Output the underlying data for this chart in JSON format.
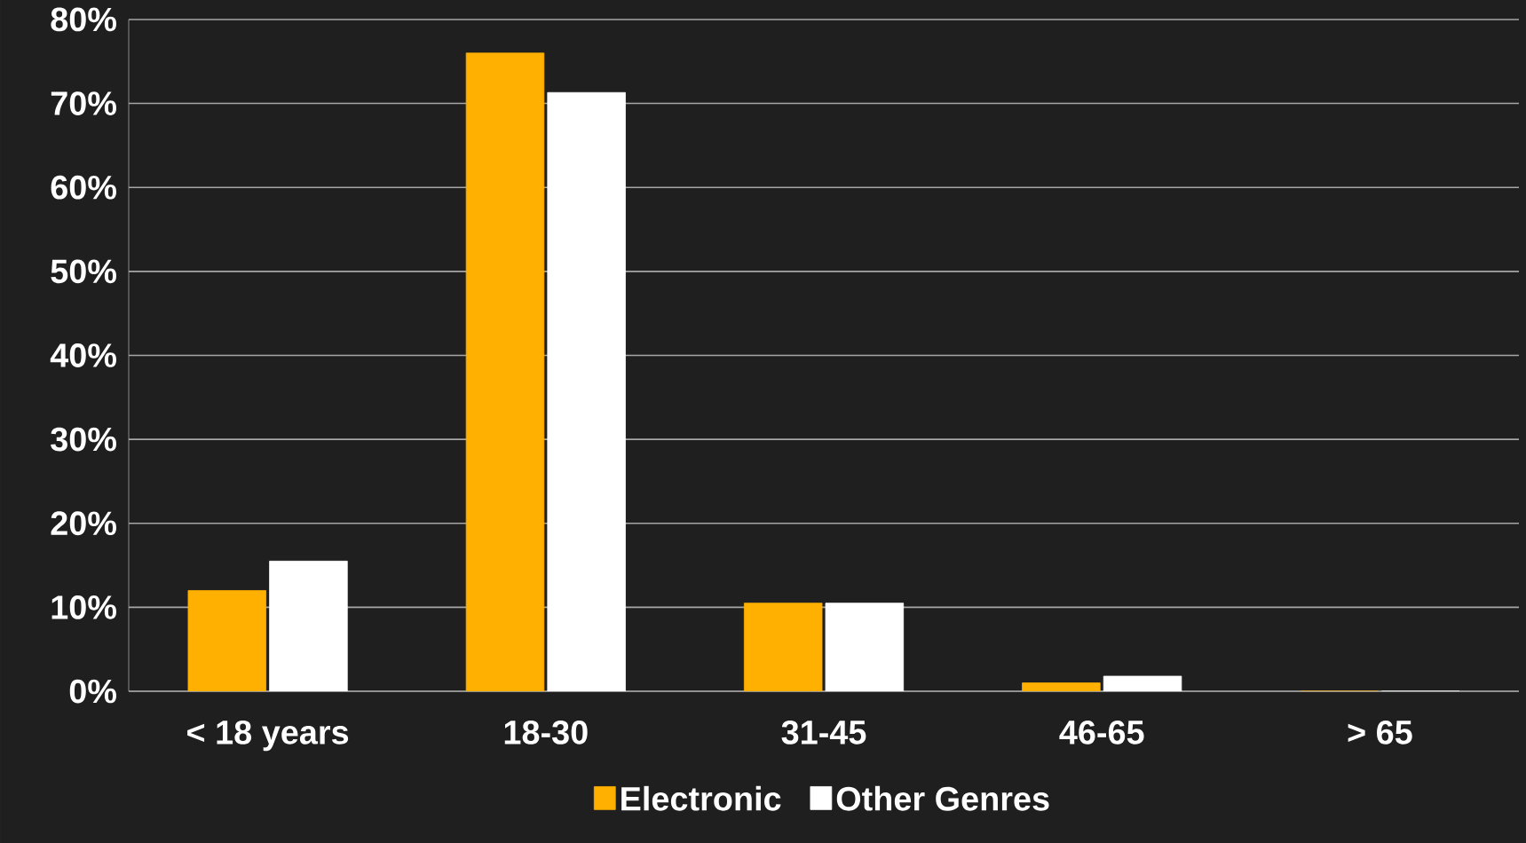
{
  "chart_data": {
    "type": "bar",
    "categories": [
      "< 18 years",
      "18-30",
      "31-45",
      "46-65",
      "> 65"
    ],
    "series": [
      {
        "name": "Electronic",
        "color": "#ffb000",
        "values": [
          12,
          76,
          10.5,
          1,
          0
        ]
      },
      {
        "name": "Other Genres",
        "color": "#ffffff",
        "values": [
          15.5,
          71.3,
          10.5,
          1.8,
          0
        ]
      }
    ],
    "ylim": [
      0,
      80
    ],
    "yticks": [
      {
        "value": 0,
        "label": "0%"
      },
      {
        "value": 10,
        "label": "10%"
      },
      {
        "value": 20,
        "label": "20%"
      },
      {
        "value": 30,
        "label": "30%"
      },
      {
        "value": 40,
        "label": "40%"
      },
      {
        "value": 50,
        "label": "50%"
      },
      {
        "value": 60,
        "label": "60%"
      },
      {
        "value": 70,
        "label": "70%"
      },
      {
        "value": 80,
        "label": "80%"
      }
    ],
    "grid": "y",
    "legend": "bottom"
  }
}
